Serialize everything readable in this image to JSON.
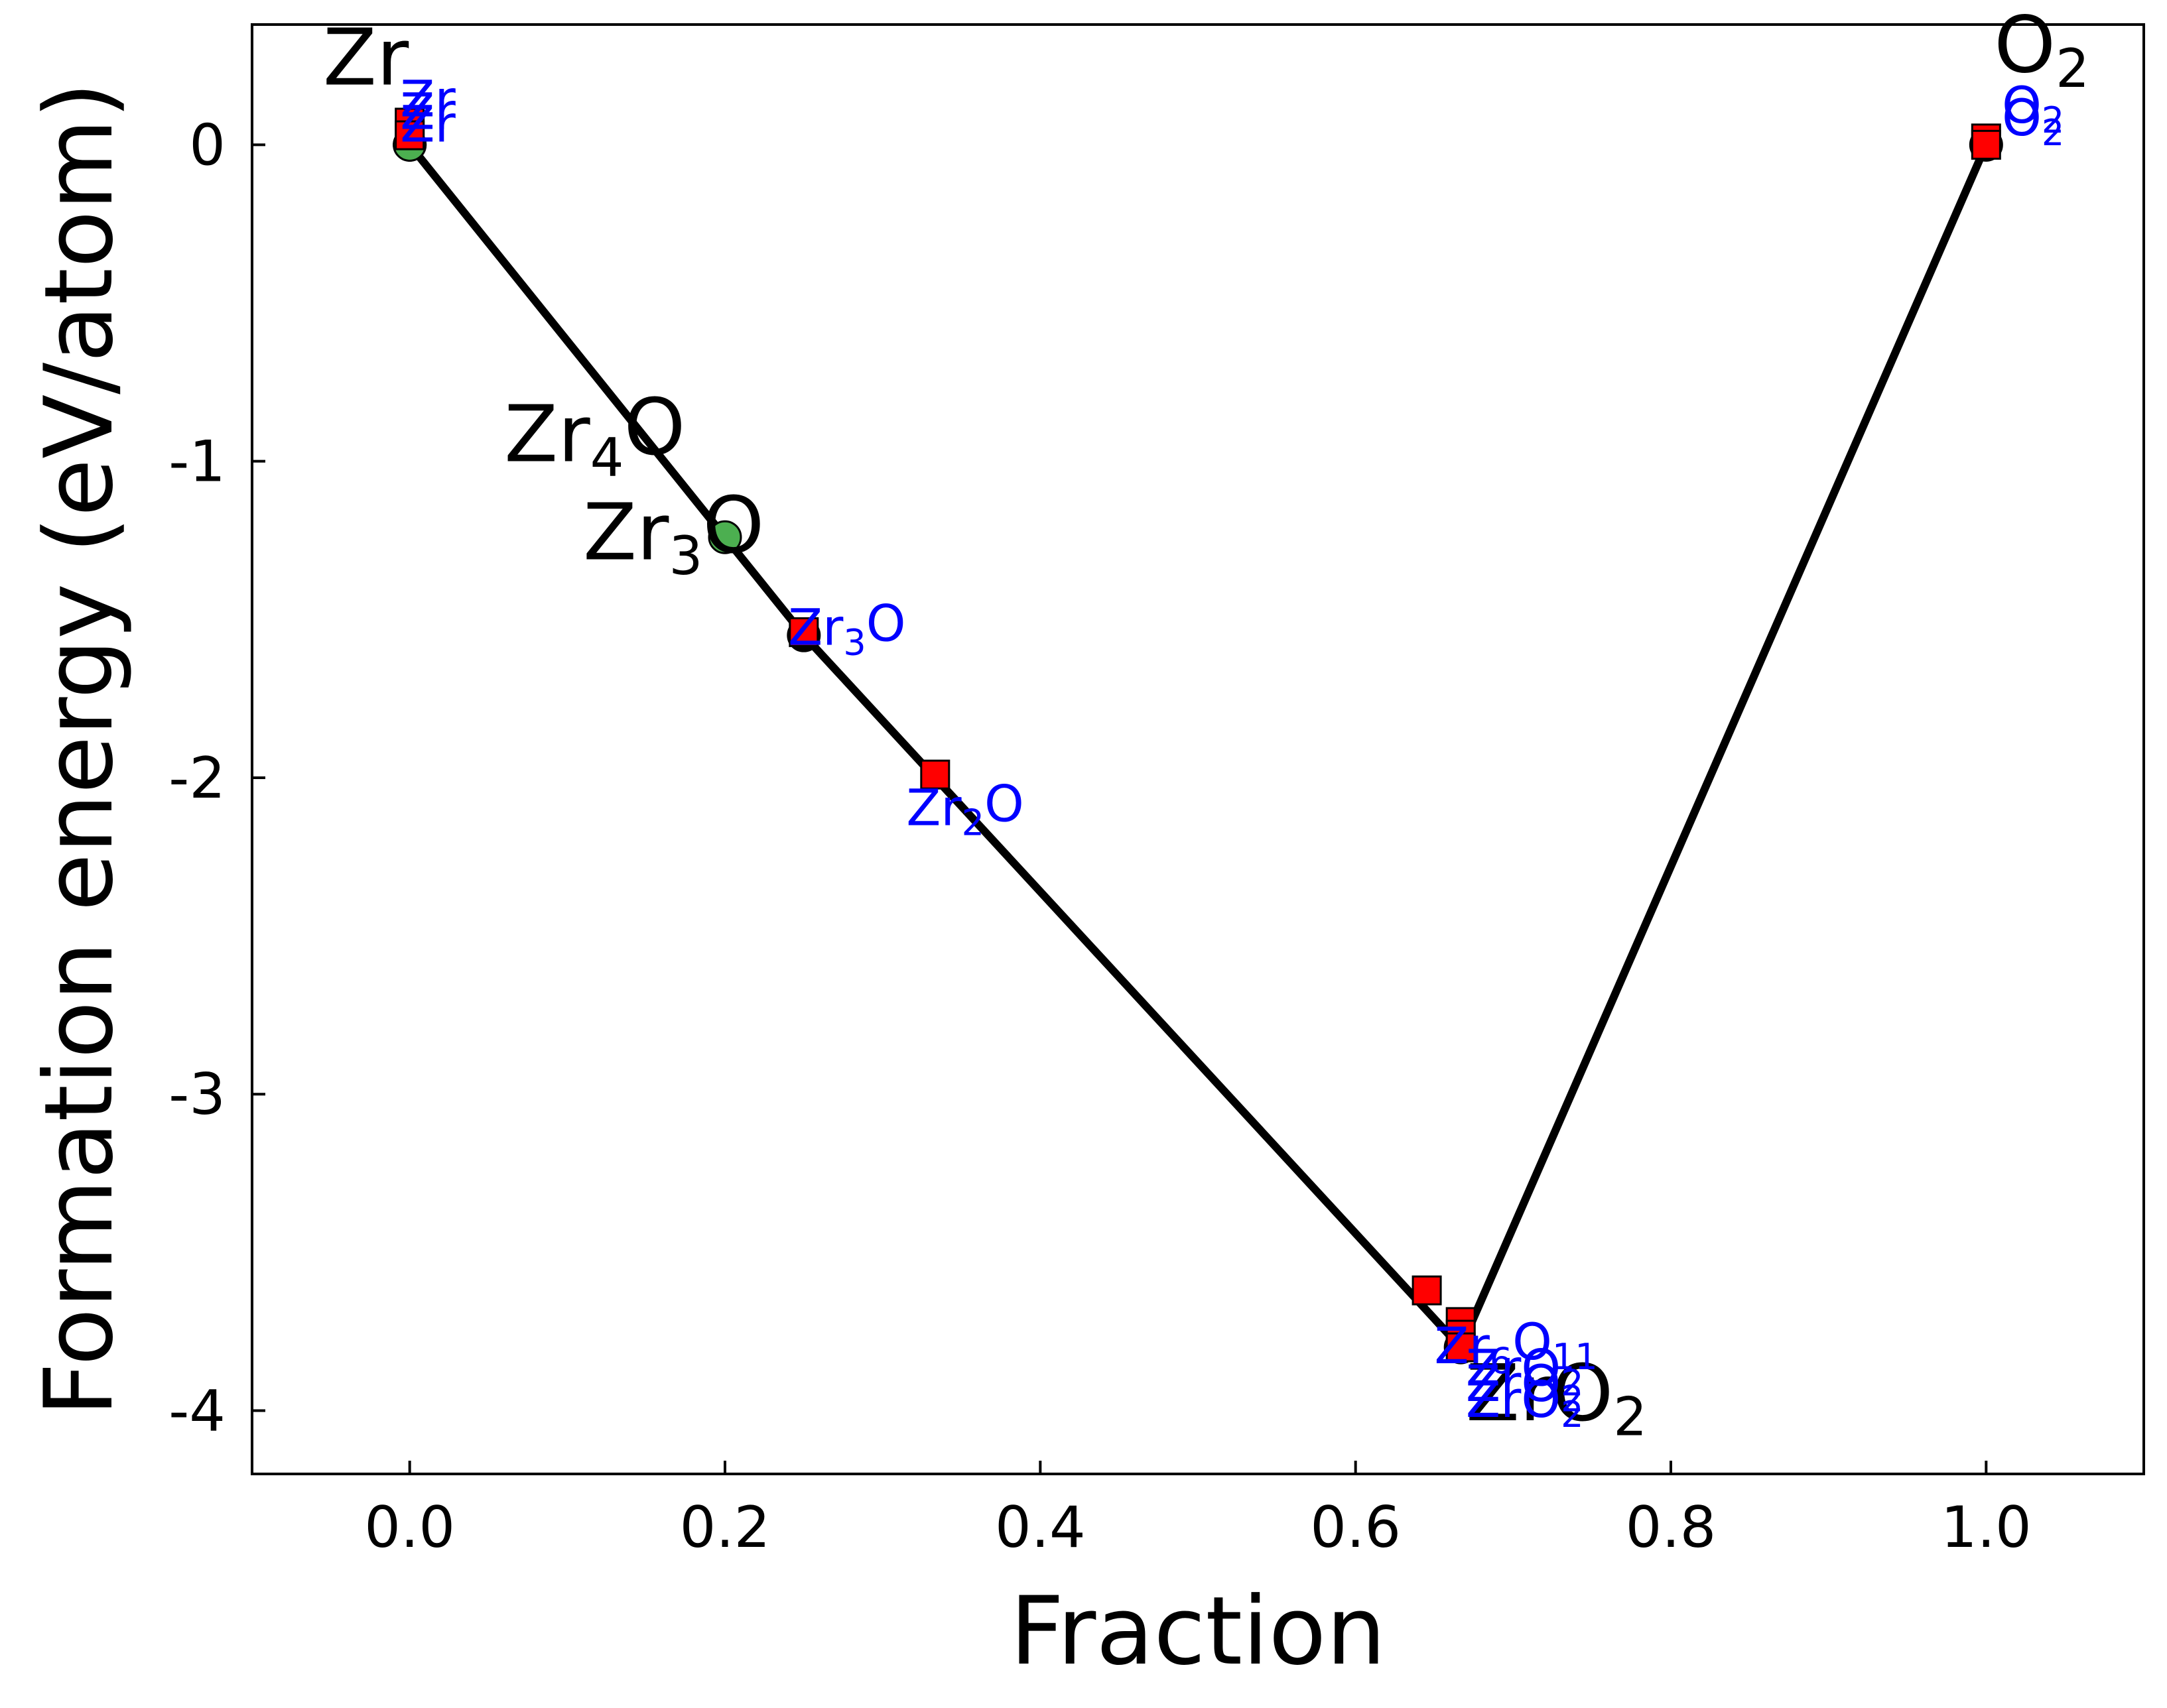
{
  "chart_data": {
    "type": "scatter",
    "title": "",
    "xlabel": "Fraction",
    "ylabel": "Formation energy (eV/atom)",
    "xlim": [
      -0.1,
      1.1
    ],
    "ylim": [
      -4.2,
      0.38
    ],
    "xticks": [
      0.0,
      0.2,
      0.4,
      0.6,
      0.8,
      1.0
    ],
    "xtick_labels": [
      "0.0",
      "0.2",
      "0.4",
      "0.6",
      "0.8",
      "1.0"
    ],
    "yticks": [
      0,
      -1,
      -2,
      -3,
      -4
    ],
    "ytick_labels": [
      "0",
      "-1",
      "-2",
      "-3",
      "-4"
    ],
    "grid": false,
    "legend": "none",
    "colors": {
      "hull_line": "#000000",
      "stable_marker_edge": "#000000",
      "green_marker": "#4caf50",
      "red_marker": "#ff0000",
      "blue_label": "#0000ff"
    },
    "hull": {
      "x": [
        0.0,
        0.25,
        0.6667,
        1.0
      ],
      "y": [
        0.0,
        -1.55,
        -3.8,
        0.0
      ]
    },
    "stable_points": {
      "x": [
        0.0,
        0.25,
        0.6667,
        1.0
      ],
      "y": [
        0.0,
        -1.55,
        -3.8,
        0.0
      ]
    },
    "green_points": {
      "x": [
        0.0,
        0.2
      ],
      "y": [
        0.0,
        -1.24
      ]
    },
    "red_points": {
      "x": [
        0.0,
        0.0,
        0.25,
        0.3333,
        0.6452,
        0.6667,
        0.6667,
        0.6667,
        1.0,
        1.0
      ],
      "y": [
        0.07,
        0.03,
        -1.54,
        -1.99,
        -3.62,
        -3.72,
        -3.76,
        -3.8,
        0.02,
        0.0
      ]
    },
    "big_labels": [
      {
        "text": "Zr",
        "x": -0.055,
        "y": 0.19,
        "sub": ""
      },
      {
        "text": "Zr",
        "sub": "4",
        "after": "O",
        "x": 0.06,
        "y": -1.0
      },
      {
        "text": "Zr",
        "sub": "3",
        "after": "O",
        "x": 0.11,
        "y": -1.31
      },
      {
        "text": "Zr",
        "sub": "",
        "after": "O",
        "sub2": "2",
        "x": 0.67,
        "y": -4.03
      },
      {
        "text": "O",
        "sub": "2",
        "x": 1.005,
        "y": 0.23
      }
    ],
    "small_labels": [
      {
        "text": "Zr",
        "x": -0.006,
        "y": 0.09
      },
      {
        "text": "Zr",
        "x": -0.006,
        "y": 0.05
      },
      {
        "text": "Zr",
        "x": -0.006,
        "y": 0.01
      },
      {
        "text": "Zr",
        "sub": "3",
        "after": "O",
        "x": 0.24,
        "y": -1.58
      },
      {
        "text": "Zr",
        "sub": "2",
        "after": "O",
        "x": 0.315,
        "y": -2.15
      },
      {
        "text": "Zr",
        "sub": "6",
        "after": "O",
        "sub2": "11",
        "x": 0.65,
        "y": -3.85
      },
      {
        "text": "ZrO",
        "sub": "2",
        "x": 0.67,
        "y": -3.92
      },
      {
        "text": "ZrO",
        "sub": "2",
        "x": 0.67,
        "y": -3.97
      },
      {
        "text": "ZrO",
        "sub": "2",
        "x": 0.67,
        "y": -4.02
      },
      {
        "text": "O",
        "sub": "2",
        "x": 1.01,
        "y": 0.07
      },
      {
        "text": "O",
        "sub": "2",
        "x": 1.01,
        "y": 0.03
      }
    ]
  }
}
